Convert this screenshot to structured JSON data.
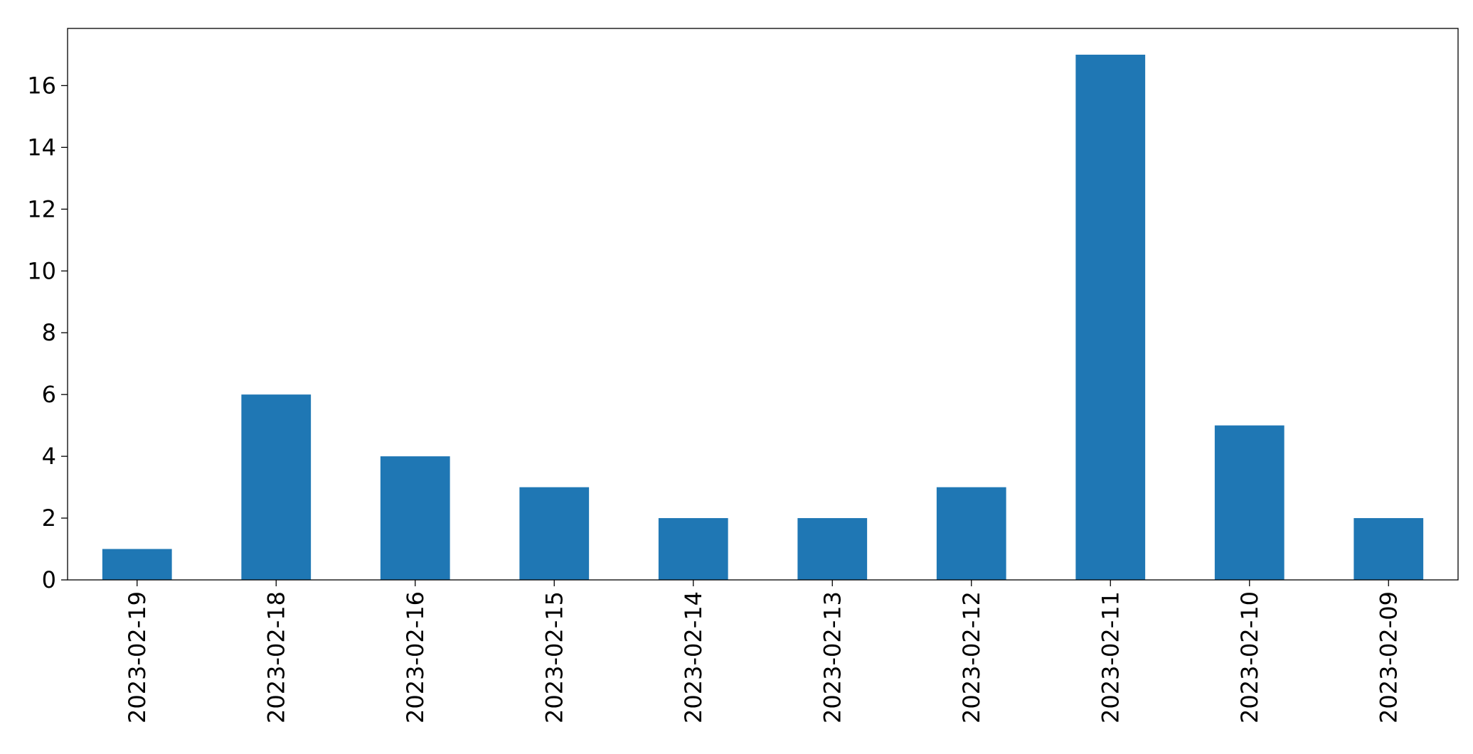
{
  "chart_data": {
    "type": "bar",
    "categories": [
      "2023-02-19",
      "2023-02-18",
      "2023-02-16",
      "2023-02-15",
      "2023-02-14",
      "2023-02-13",
      "2023-02-12",
      "2023-02-11",
      "2023-02-10",
      "2023-02-09"
    ],
    "values": [
      1,
      6,
      4,
      3,
      2,
      2,
      3,
      17,
      5,
      2
    ],
    "color": "#1f77b4",
    "ylim": [
      0,
      17.85
    ],
    "yticks": [
      0,
      2,
      4,
      6,
      8,
      10,
      12,
      14,
      16
    ],
    "grid": false
  }
}
